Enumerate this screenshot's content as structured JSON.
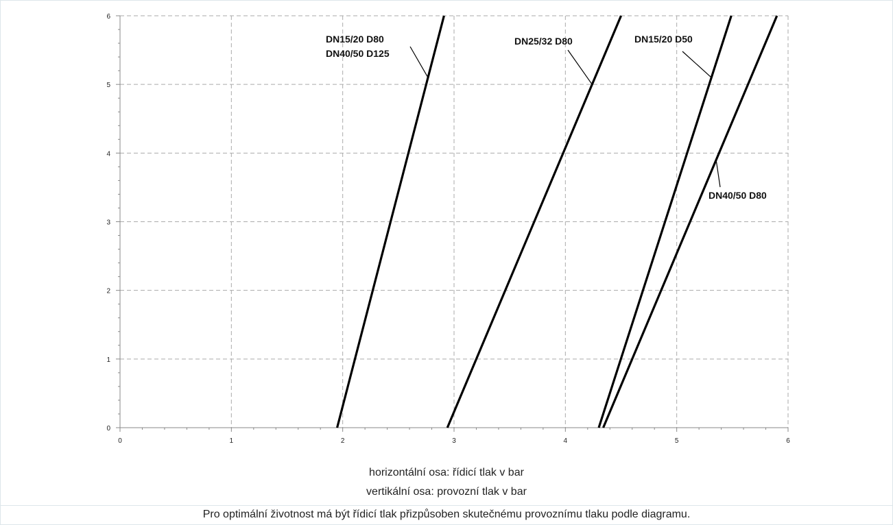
{
  "chart_data": {
    "type": "line",
    "xlim": [
      0,
      6
    ],
    "ylim": [
      0,
      6
    ],
    "x_ticks": [
      "0",
      "1",
      "2",
      "3",
      "4",
      "5",
      "6"
    ],
    "y_ticks": [
      "0",
      "1",
      "2",
      "3",
      "4",
      "5",
      "6"
    ],
    "grid": true,
    "grid_style": "dashed",
    "series": [
      {
        "label_lines": [
          "DN15/20 D80",
          "DN40/50 D125"
        ],
        "x": [
          1.95,
          2.91
        ],
        "y": [
          0,
          6
        ]
      },
      {
        "label_lines": [
          "DN25/32 D80"
        ],
        "x": [
          2.94,
          4.5
        ],
        "y": [
          0,
          6
        ]
      },
      {
        "label_lines": [
          "DN15/20 D50"
        ],
        "x": [
          4.3,
          5.49
        ],
        "y": [
          0,
          6
        ]
      },
      {
        "label_lines": [
          "DN40/50 D80"
        ],
        "x": [
          4.34,
          5.9
        ],
        "y": [
          0,
          6
        ]
      }
    ],
    "xlabel": "horizontální osa: řídicí tlak v bar",
    "ylabel": "vertikální osa: provozní tlak v bar"
  },
  "caption": "Pro optimální životnost má být řídicí tlak přizpůsoben skutečnému provoznímu tlaku podle diagramu.",
  "colors": {
    "line": "#000000",
    "grid": "#aaaaaa",
    "axis": "#888888",
    "frame": "#dde6ea"
  }
}
